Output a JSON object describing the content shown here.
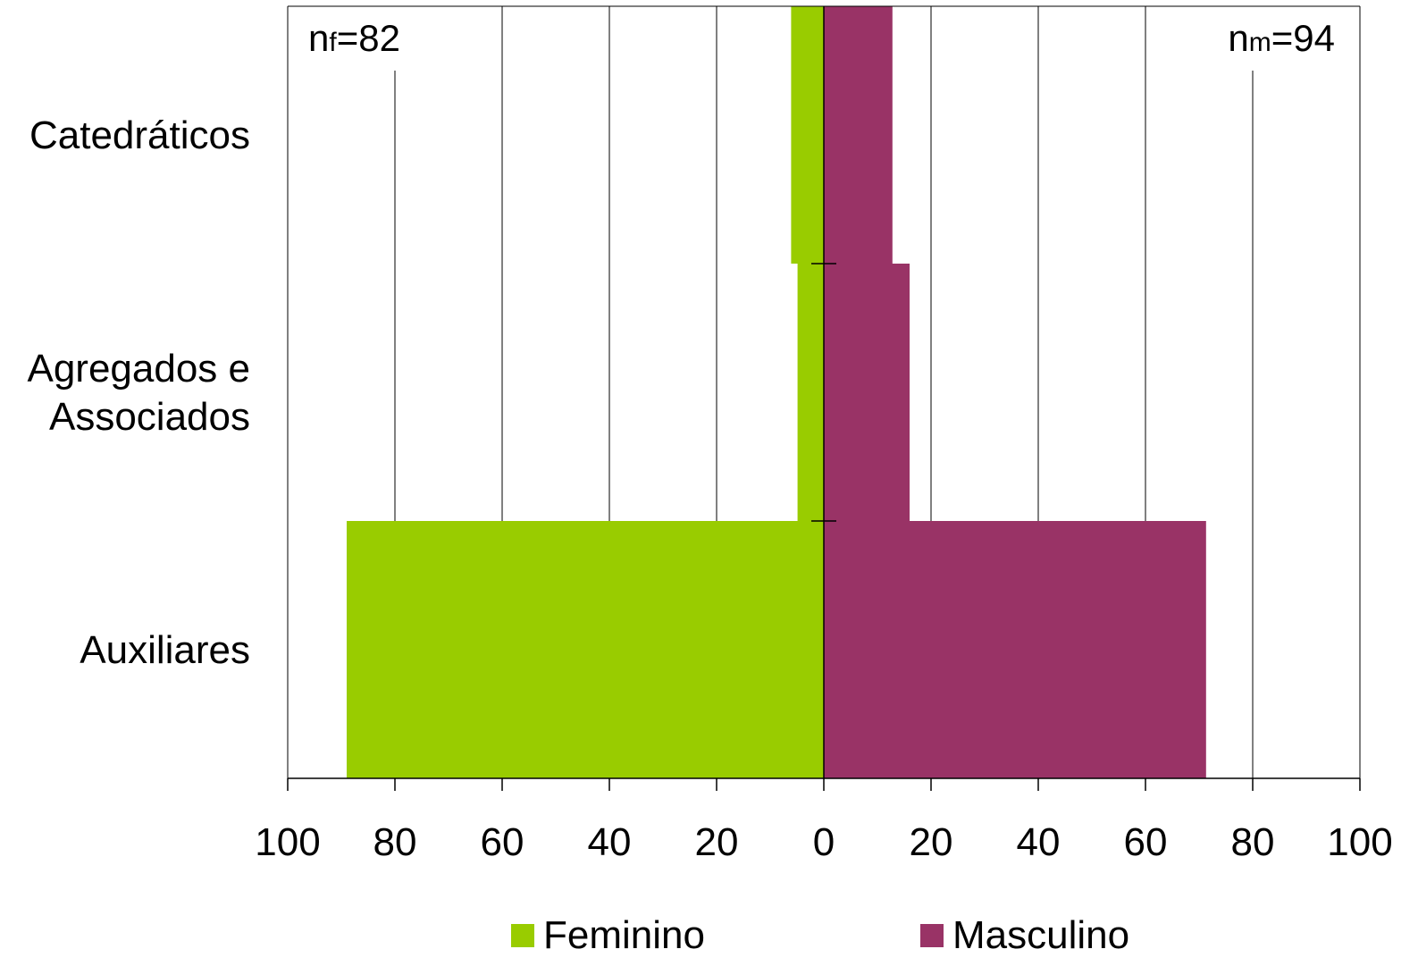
{
  "chart_data": {
    "type": "bar",
    "orientation": "horizontal",
    "layout": "population-pyramid",
    "categories": [
      "Catedráticos",
      "Agregados e Associados",
      "Auxiliares"
    ],
    "category_label_lines": [
      [
        "Catedráticos"
      ],
      [
        "Agregados e",
        "Associados"
      ],
      [
        "Auxiliares"
      ]
    ],
    "series": [
      {
        "name": "Feminino",
        "side": "left",
        "color": "#99cc00",
        "values": [
          6.1,
          4.9,
          89.0
        ]
      },
      {
        "name": "Masculino",
        "side": "right",
        "color": "#993366",
        "values": [
          12.8,
          16.0,
          71.3
        ]
      }
    ],
    "xlim": [
      -100,
      100
    ],
    "x_ticks": [
      -100,
      -80,
      -60,
      -40,
      -20,
      0,
      20,
      40,
      60,
      80,
      100
    ],
    "x_tick_labels": [
      "100",
      "80",
      "60",
      "40",
      "20",
      "0",
      "20",
      "40",
      "60",
      "80",
      "100"
    ],
    "grid": true,
    "legend_position": "bottom",
    "annotations": [
      {
        "base": "n",
        "sub": "f",
        "text": "=82",
        "position": "top-left"
      },
      {
        "base": "n",
        "sub": "m",
        "text": "=94",
        "position": "top-right"
      }
    ]
  }
}
